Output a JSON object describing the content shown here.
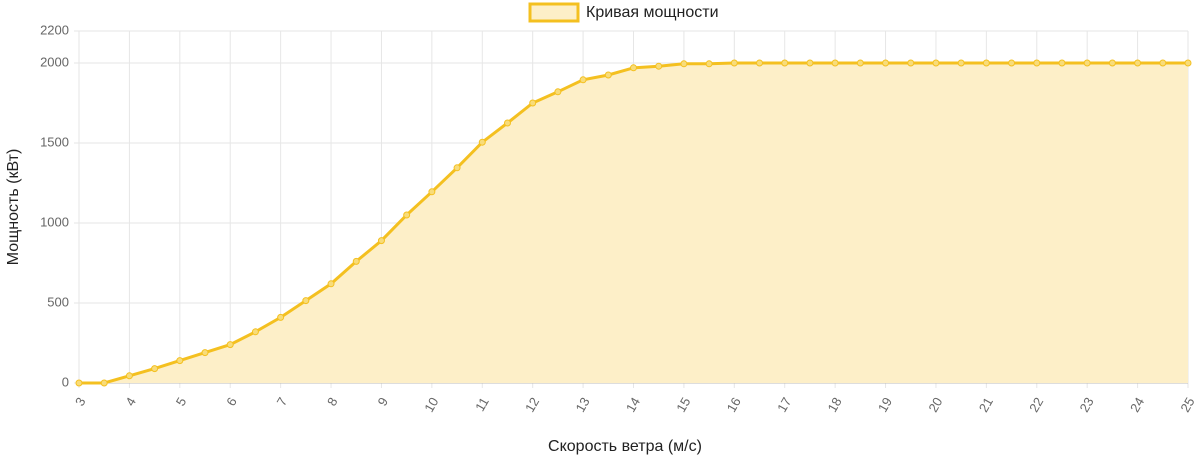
{
  "chart_data": {
    "type": "area",
    "x_label": "Скорость ветра (м/с)",
    "y_label": "Мощность (кВт)",
    "x": [
      3,
      3.5,
      4,
      4.5,
      5,
      5.5,
      6,
      6.5,
      7,
      7.5,
      8,
      8.5,
      9,
      9.5,
      10,
      10.5,
      11,
      11.5,
      12,
      12.5,
      13,
      13.5,
      14,
      14.5,
      15,
      15.5,
      16,
      16.5,
      17,
      17.5,
      18,
      18.5,
      19,
      19.5,
      20,
      20.5,
      21,
      21.5,
      22,
      22.5,
      23,
      23.5,
      24,
      24.5,
      25
    ],
    "series": [
      {
        "name": "Кривая мощности",
        "color": "#f4c020",
        "fill": "#fdefc8",
        "values": [
          0,
          0,
          45,
          90,
          140,
          190,
          240,
          320,
          410,
          515,
          620,
          760,
          890,
          1050,
          1195,
          1345,
          1505,
          1625,
          1750,
          1820,
          1895,
          1925,
          1970,
          1980,
          1995,
          1995,
          2000,
          2000,
          2000,
          2000,
          2000,
          2000,
          2000,
          2000,
          2000,
          2000,
          2000,
          2000,
          2000,
          2000,
          2000,
          2000,
          2000,
          2000,
          2000
        ]
      }
    ],
    "xlim": [
      3,
      25
    ],
    "xticks": [
      3,
      4,
      5,
      6,
      7,
      8,
      9,
      10,
      11,
      12,
      13,
      14,
      15,
      16,
      17,
      18,
      19,
      20,
      21,
      22,
      23,
      24,
      25
    ],
    "ylim": [
      0,
      2200
    ],
    "yticks": [
      0,
      500,
      1000,
      1500,
      2000,
      2200
    ],
    "grid": true,
    "legend": "top"
  }
}
